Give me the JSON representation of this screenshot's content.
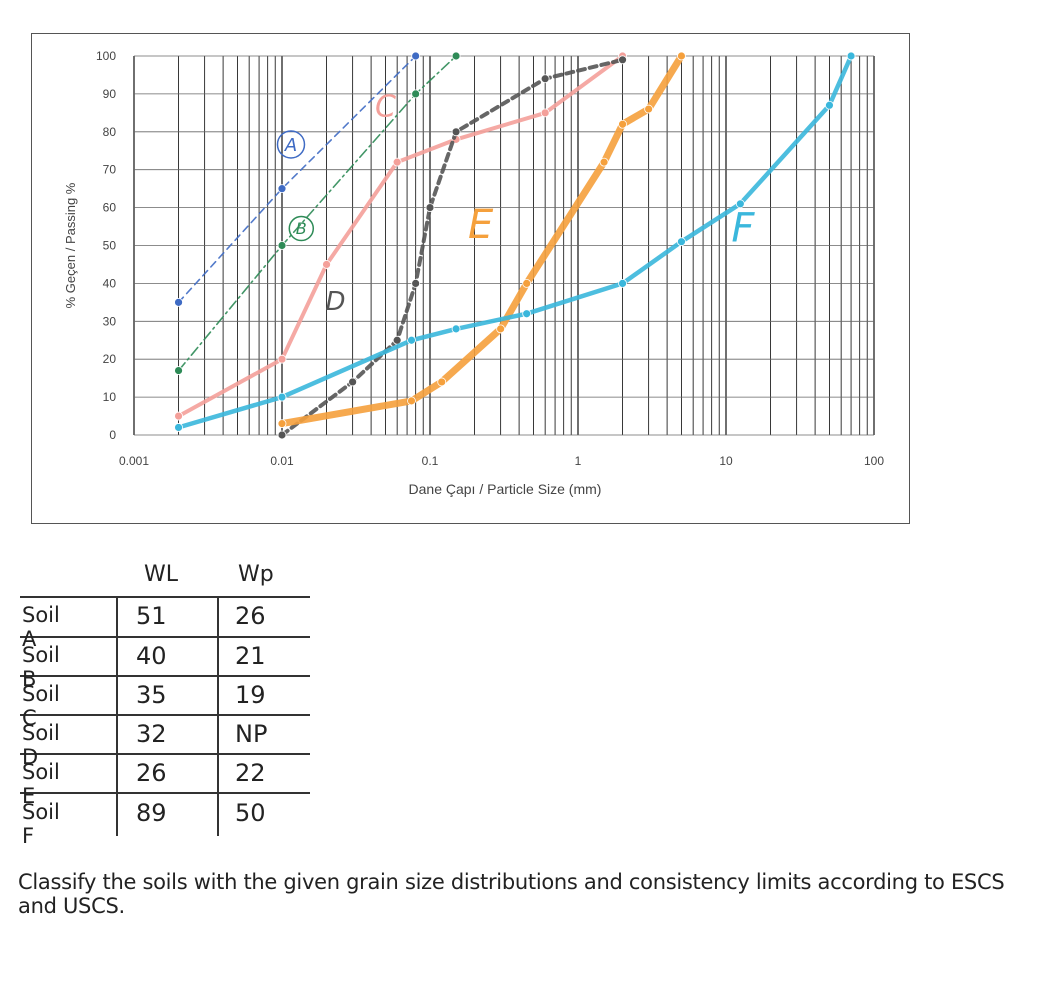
{
  "chart_data": {
    "type": "line",
    "xscale": "log",
    "xlim": [
      0.001,
      100
    ],
    "ylim": [
      0,
      100
    ],
    "xlabel": "Dane Çapı / Particle Size (mm)",
    "ylabel": "% Geçen / Passing %",
    "xticks": [
      "0.001",
      "0.01",
      "0.1",
      "1",
      "10",
      "100"
    ],
    "yticks": [
      "0",
      "10",
      "20",
      "30",
      "40",
      "50",
      "60",
      "70",
      "80",
      "90",
      "100"
    ],
    "grid": true,
    "series": [
      {
        "name": "A",
        "label": "A",
        "color": "#3f6bc4",
        "style": "dashed",
        "x": [
          0.002,
          0.01,
          0.08
        ],
        "y": [
          35,
          65,
          100
        ]
      },
      {
        "name": "B",
        "label": "B",
        "color": "#2e8b57",
        "style": "dashdot",
        "x": [
          0.002,
          0.01,
          0.08,
          0.15
        ],
        "y": [
          17,
          50,
          90,
          100
        ]
      },
      {
        "name": "C",
        "label": "C",
        "color": "#f4a09a",
        "style": "solid",
        "x": [
          0.002,
          0.01,
          0.02,
          0.06,
          0.15,
          0.6,
          2
        ],
        "y": [
          5,
          20,
          45,
          72,
          78,
          85,
          100
        ]
      },
      {
        "name": "D",
        "label": "D",
        "color": "#555555",
        "style": "dashed",
        "x": [
          0.01,
          0.03,
          0.06,
          0.08,
          0.1,
          0.15,
          0.6,
          2
        ],
        "y": [
          0,
          14,
          25,
          40,
          60,
          80,
          94,
          99
        ]
      },
      {
        "name": "E",
        "label": "E",
        "color": "#f5a03c",
        "style": "solid",
        "x": [
          0.01,
          0.075,
          0.12,
          0.3,
          0.45,
          1.5,
          2,
          3,
          5
        ],
        "y": [
          3,
          9,
          14,
          28,
          40,
          72,
          82,
          86,
          100
        ]
      },
      {
        "name": "F",
        "label": "F",
        "color": "#3ab7dc",
        "style": "solid",
        "x": [
          0.002,
          0.01,
          0.075,
          0.15,
          0.45,
          2,
          5,
          12.5,
          50,
          70
        ],
        "y": [
          2,
          10,
          25,
          28,
          32,
          40,
          51,
          61,
          87,
          100
        ]
      }
    ]
  },
  "table": {
    "headers": {
      "wl": "WL",
      "wp": "Wp"
    },
    "rows": [
      {
        "soil": "Soil A",
        "wl": "51",
        "wp": "26"
      },
      {
        "soil": "Soil B",
        "wl": "40",
        "wp": "21"
      },
      {
        "soil": "Soil C",
        "wl": "35",
        "wp": "19"
      },
      {
        "soil": "Soil D",
        "wl": "32",
        "wp": "NP"
      },
      {
        "soil": "Soil E",
        "wl": "26",
        "wp": "22"
      },
      {
        "soil": "Soil F",
        "wl": "89",
        "wp": "50"
      }
    ]
  },
  "question": "Classify the soils with the given grain size distributions and consistency limits according to ESCS and USCS."
}
